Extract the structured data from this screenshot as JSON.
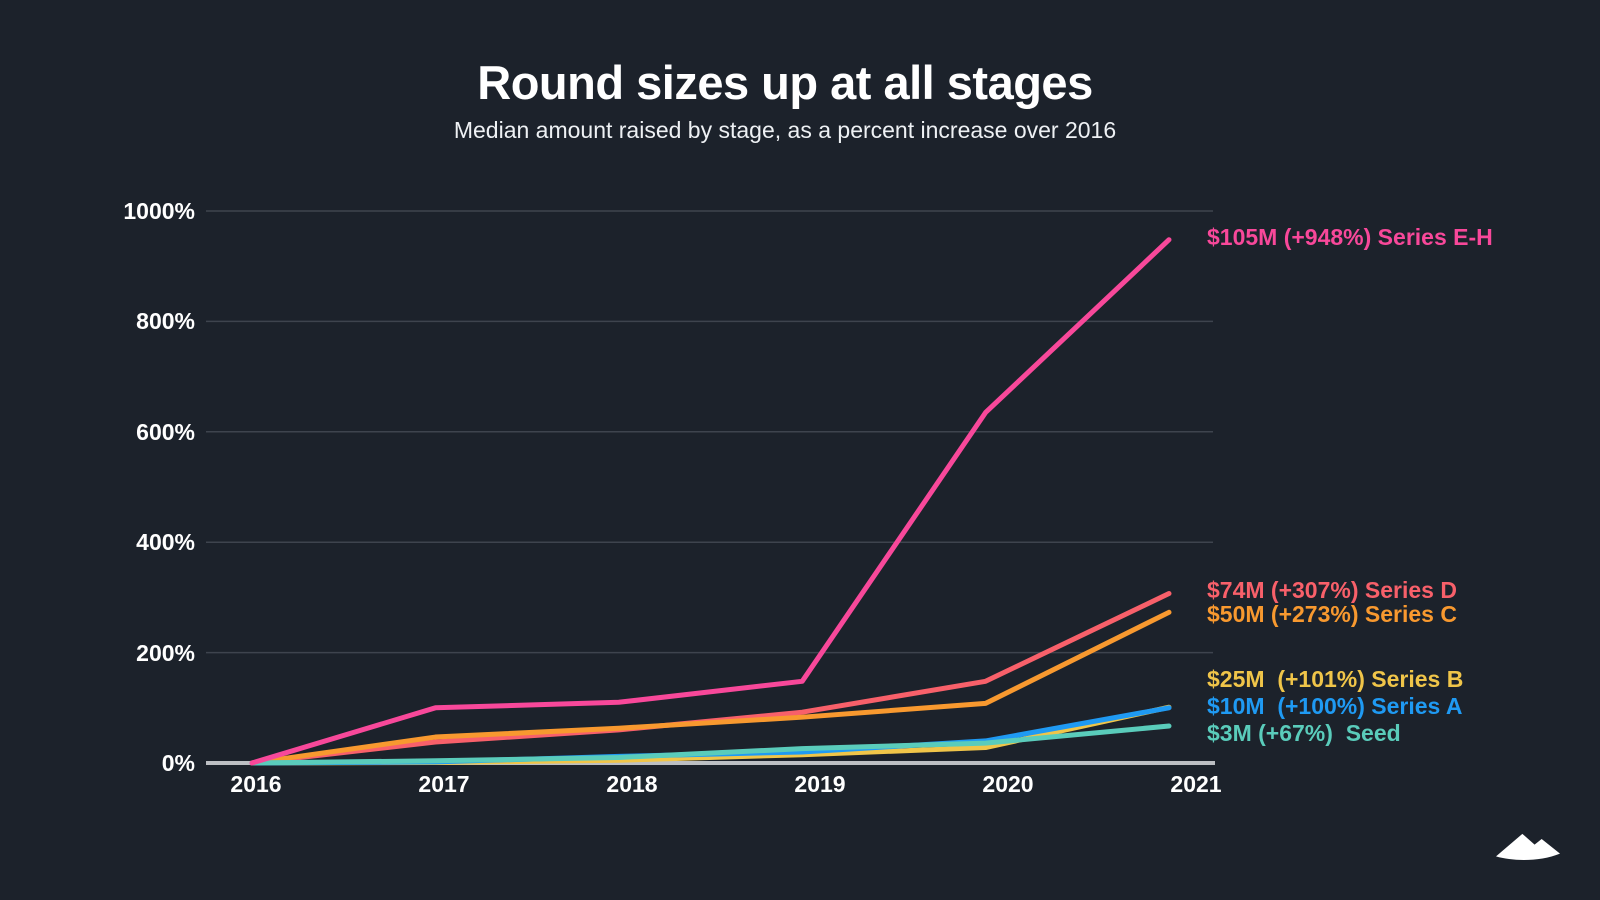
{
  "header": {
    "title": "Round sizes up at all stages",
    "subtitle": "Median amount raised by stage, as a percent increase over 2016"
  },
  "style": {
    "background": "#1c222b",
    "text_color": "#ffffff",
    "gridline_color": "#3e444e",
    "axis_line_color": "#bcbfc3",
    "logo_color": "#ffffff"
  },
  "chart_data": {
    "type": "line",
    "x": [
      2016,
      2017,
      2018,
      2019,
      2020,
      2021
    ],
    "x_tick_labels": [
      "2016",
      "2017",
      "2018",
      "2019",
      "2020",
      "2021"
    ],
    "y_ticks": [
      0,
      200,
      400,
      600,
      800,
      1000
    ],
    "y_tick_labels": [
      "0%",
      "200%",
      "400%",
      "600%",
      "800%",
      "1000%"
    ],
    "ylim": [
      0,
      1000
    ],
    "grid": true,
    "legend_position": "right-annotations",
    "series": [
      {
        "name": "Series E-H",
        "annotation": "$105M (+948%) Series E-H",
        "color": "#f8489a",
        "values": [
          0,
          100,
          110,
          148,
          635,
          948
        ]
      },
      {
        "name": "Series D",
        "annotation": "$74M (+307%) Series D",
        "color": "#f8606a",
        "values": [
          0,
          38,
          60,
          92,
          148,
          307
        ]
      },
      {
        "name": "Series C",
        "annotation": "$50M (+273%) Series C",
        "color": "#f8992f",
        "values": [
          0,
          47,
          63,
          83,
          108,
          273
        ]
      },
      {
        "name": "Series B",
        "annotation": "$25M  (+101%) Series B",
        "color": "#f0c549",
        "values": [
          0,
          1,
          5,
          15,
          28,
          101
        ]
      },
      {
        "name": "Series A",
        "annotation": "$10M  (+100%) Series A",
        "color": "#1f9af3",
        "values": [
          0,
          2,
          12,
          20,
          40,
          100
        ]
      },
      {
        "name": "Seed",
        "annotation": "$3M (+67%)  Seed",
        "color": "#5accbb",
        "values": [
          0,
          4,
          10,
          26,
          36,
          67
        ]
      }
    ]
  }
}
